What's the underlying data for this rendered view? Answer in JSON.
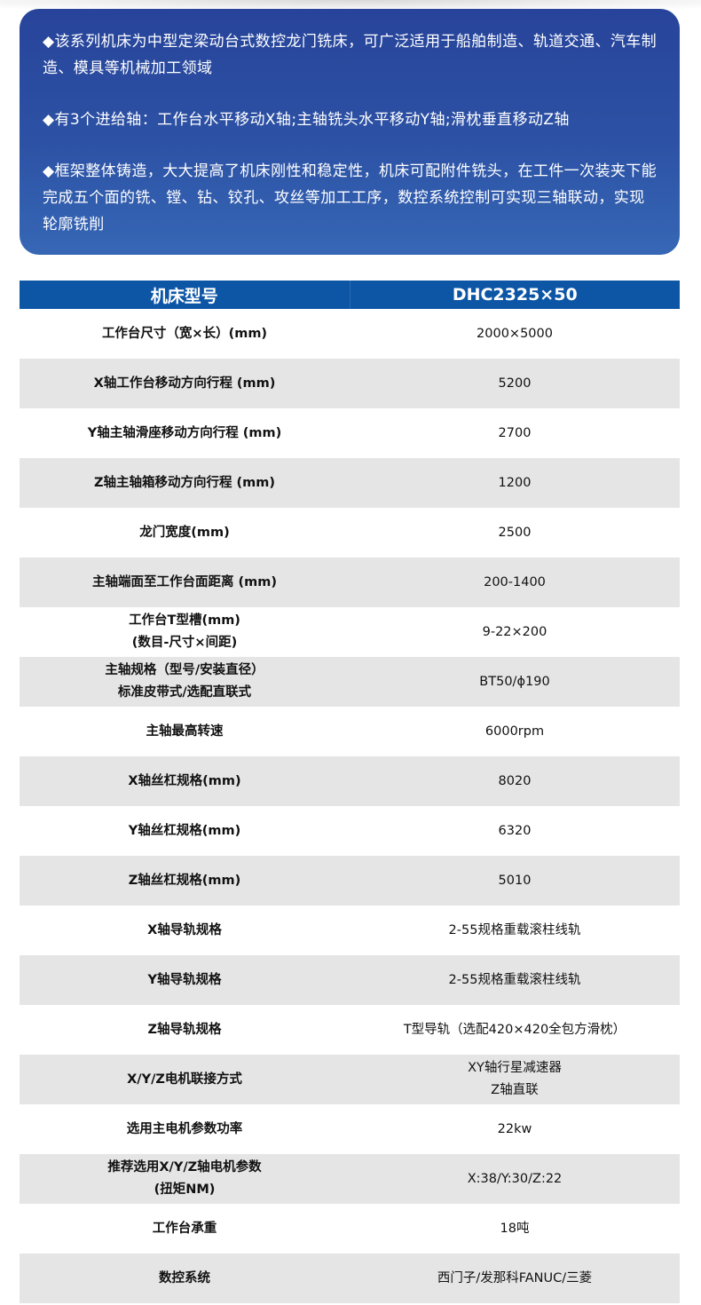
{
  "intro": {
    "paragraphs": [
      "◆该系列机床为中型定梁动台式数控龙门铣床，可广泛适用于船舶制造、轨道交通、汽车制造、模具等机械加工领域",
      "◆有3个进给轴：工作台水平移动X轴;主轴铣头水平移动Y轴;滑枕垂直移动Z轴",
      "◆框架整体铸造，大大提高了机床刚性和稳定性，机床可配附件铣头，在工件一次装夹下能完成五个面的铣、镗、钻、铰孔、攻丝等加工工序，数控系统控制可实现三轴联动，实现轮廓铣削"
    ]
  },
  "table": {
    "header": [
      "机床型号",
      "DHC2325×50"
    ],
    "rows": [
      {
        "label": [
          "工作台尺寸（宽×长）(mm)"
        ],
        "value": [
          "2000×5000"
        ]
      },
      {
        "label": [
          "X轴工作台移动方向行程 (mm)"
        ],
        "value": [
          "5200"
        ]
      },
      {
        "label": [
          "Y轴主轴滑座移动方向行程 (mm)"
        ],
        "value": [
          "2700"
        ]
      },
      {
        "label": [
          "Z轴主轴箱移动方向行程 (mm)"
        ],
        "value": [
          "1200"
        ]
      },
      {
        "label": [
          "龙门宽度(mm)"
        ],
        "value": [
          "2500"
        ]
      },
      {
        "label": [
          "主轴端面至工作台面距离 (mm)"
        ],
        "value": [
          "200-1400"
        ]
      },
      {
        "label": [
          "工作台T型槽(mm)",
          "(数目-尺寸×间距)"
        ],
        "value": [
          "9-22×200"
        ]
      },
      {
        "label": [
          "主轴规格（型号/安装直径）",
          "标准皮带式/选配直联式"
        ],
        "value": [
          "BT50/ϕ190"
        ]
      },
      {
        "label": [
          "主轴最高转速"
        ],
        "value": [
          "6000rpm"
        ]
      },
      {
        "label": [
          "X轴丝杠规格(mm)"
        ],
        "value": [
          "8020"
        ]
      },
      {
        "label": [
          "Y轴丝杠规格(mm)"
        ],
        "value": [
          "6320"
        ]
      },
      {
        "label": [
          "Z轴丝杠规格(mm)"
        ],
        "value": [
          "5010"
        ]
      },
      {
        "label": [
          "X轴导轨规格"
        ],
        "value": [
          "2-55规格重载滚柱线轨"
        ]
      },
      {
        "label": [
          "Y轴导轨规格"
        ],
        "value": [
          "2-55规格重载滚柱线轨"
        ]
      },
      {
        "label": [
          "Z轴导轨规格"
        ],
        "value": [
          "T型导轨（选配420×420全包方滑枕）"
        ]
      },
      {
        "label": [
          "X/Y/Z电机联接方式"
        ],
        "value": [
          "XY轴行星减速器",
          "Z轴直联"
        ]
      },
      {
        "label": [
          "选用主电机参数功率"
        ],
        "value": [
          "22kw"
        ]
      },
      {
        "label": [
          "推荐选用X/Y/Z轴电机参数",
          "(扭矩NM)"
        ],
        "value": [
          "X:38/Y:30/Z:22"
        ]
      },
      {
        "label": [
          "工作台承重"
        ],
        "value": [
          "18吨"
        ]
      },
      {
        "label": [
          "数控系统"
        ],
        "value": [
          "西门子/发那科FANUC/三菱"
        ]
      }
    ]
  },
  "colors": {
    "header_blue": "#0d56a6",
    "intro_blue": "#2d52a5",
    "row_gray": "#e6e5e6"
  }
}
